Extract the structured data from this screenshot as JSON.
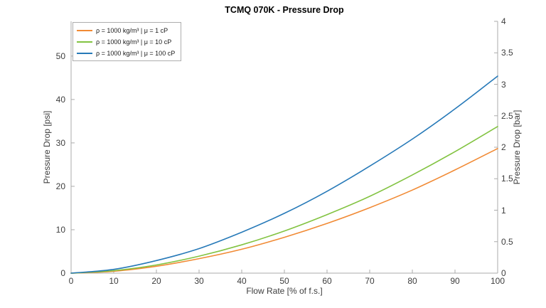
{
  "chart_data": {
    "type": "line",
    "title": "TCMQ 070K - Pressure Drop",
    "xlabel": "Flow Rate [% of f.s.]",
    "ylabel_left": "Pressure Drop [psi]",
    "ylabel_right": "Pressure Drop [bar]",
    "xlim": [
      0,
      100
    ],
    "ylim_left_psi": [
      0,
      58
    ],
    "ylim_right_bar": [
      0,
      4
    ],
    "grid": false,
    "legend_position": "top-left-inside",
    "x_tick_labels": [
      "0",
      "10",
      "20",
      "30",
      "40",
      "50",
      "60",
      "70",
      "80",
      "90",
      "100"
    ],
    "y_left_tick_labels": [
      "0",
      "10",
      "20",
      "30",
      "40",
      "50"
    ],
    "y_right_tick_labels": [
      "0",
      "0.5",
      "1",
      "1.5",
      "2",
      "2.5",
      "3",
      "3.5",
      "4"
    ],
    "x": [
      0,
      10,
      20,
      30,
      40,
      50,
      60,
      70,
      80,
      90,
      100
    ],
    "series_unit": "bar",
    "series": [
      {
        "name": "ρ = 1000 kg/m³ | μ = 1 cP",
        "color": "#F18A34",
        "values": [
          0,
          0.03,
          0.11,
          0.23,
          0.38,
          0.57,
          0.79,
          1.04,
          1.32,
          1.64,
          1.98
        ]
      },
      {
        "name": "ρ = 1000 kg/m³ | μ = 10 cP",
        "color": "#82C341",
        "values": [
          0,
          0.04,
          0.13,
          0.27,
          0.45,
          0.67,
          0.93,
          1.22,
          1.56,
          1.93,
          2.33
        ]
      },
      {
        "name": "ρ = 1000 kg/m³ | μ = 100 cP",
        "color": "#2679B8",
        "values": [
          0,
          0.06,
          0.2,
          0.39,
          0.65,
          0.95,
          1.3,
          1.7,
          2.13,
          2.61,
          3.13
        ]
      }
    ],
    "axis_color": "#ababab",
    "tick_text_color": "#3d3d3d"
  }
}
